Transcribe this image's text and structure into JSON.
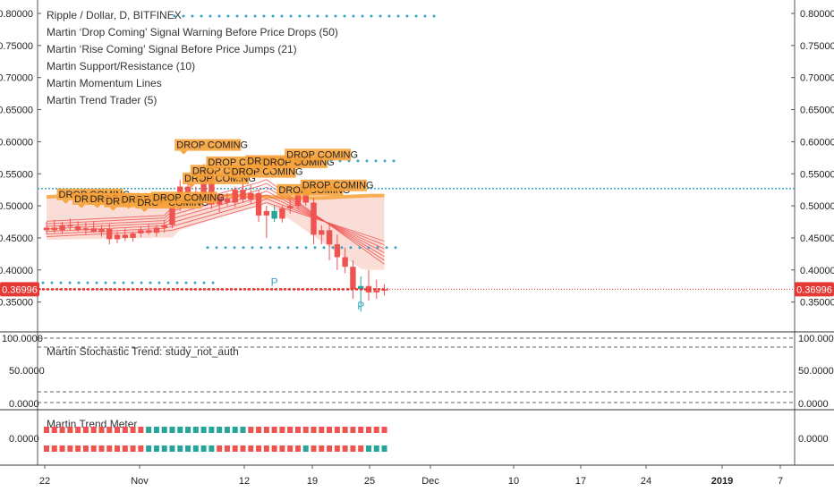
{
  "chart_data": {
    "type": "candlestick",
    "title": "Ripple / Dollar, D, BITFINEX",
    "legend": [
      "Martin ‘Drop Coming’ Signal Warning Before Price Drops (50)",
      "Martin ‘Rise Coming’ Signal Before Price Jumps (21)",
      "Martin Support/Resistance (10)",
      "Martin Momentum Lines",
      "Martin Trend Trader (5)"
    ],
    "x_ticks": [
      "22",
      "Nov",
      "12",
      "19",
      "25",
      "Dec",
      "10",
      "17",
      "24",
      "2019",
      "7"
    ],
    "y_ticks": [
      "0.80000",
      "0.75000",
      "0.70000",
      "0.65000",
      "0.60000",
      "0.55000",
      "0.50000",
      "0.45000",
      "0.40000",
      "0.35000"
    ],
    "ylim": [
      0.32,
      0.815
    ],
    "last_price": "0.36996",
    "resistance_level": 0.527,
    "current_level": 0.37,
    "candles": [
      {
        "o": 0.462,
        "h": 0.475,
        "l": 0.455,
        "c": 0.466
      },
      {
        "o": 0.466,
        "h": 0.478,
        "l": 0.458,
        "c": 0.462
      },
      {
        "o": 0.462,
        "h": 0.475,
        "l": 0.456,
        "c": 0.47
      },
      {
        "o": 0.47,
        "h": 0.48,
        "l": 0.462,
        "c": 0.468
      },
      {
        "o": 0.468,
        "h": 0.476,
        "l": 0.46,
        "c": 0.462
      },
      {
        "o": 0.462,
        "h": 0.474,
        "l": 0.455,
        "c": 0.465
      },
      {
        "o": 0.465,
        "h": 0.476,
        "l": 0.458,
        "c": 0.459
      },
      {
        "o": 0.459,
        "h": 0.47,
        "l": 0.452,
        "c": 0.464
      },
      {
        "o": 0.464,
        "h": 0.472,
        "l": 0.44,
        "c": 0.448
      },
      {
        "o": 0.448,
        "h": 0.46,
        "l": 0.442,
        "c": 0.455
      },
      {
        "o": 0.455,
        "h": 0.465,
        "l": 0.445,
        "c": 0.45
      },
      {
        "o": 0.45,
        "h": 0.46,
        "l": 0.444,
        "c": 0.457
      },
      {
        "o": 0.457,
        "h": 0.468,
        "l": 0.451,
        "c": 0.462
      },
      {
        "o": 0.462,
        "h": 0.472,
        "l": 0.455,
        "c": 0.458
      },
      {
        "o": 0.458,
        "h": 0.47,
        "l": 0.452,
        "c": 0.466
      },
      {
        "o": 0.466,
        "h": 0.478,
        "l": 0.458,
        "c": 0.47
      },
      {
        "o": 0.47,
        "h": 0.505,
        "l": 0.465,
        "c": 0.498
      },
      {
        "o": 0.498,
        "h": 0.54,
        "l": 0.492,
        "c": 0.53
      },
      {
        "o": 0.53,
        "h": 0.548,
        "l": 0.515,
        "c": 0.52
      },
      {
        "o": 0.52,
        "h": 0.53,
        "l": 0.505,
        "c": 0.512
      },
      {
        "o": 0.512,
        "h": 0.565,
        "l": 0.505,
        "c": 0.555
      },
      {
        "o": 0.555,
        "h": 0.56,
        "l": 0.495,
        "c": 0.502
      },
      {
        "o": 0.502,
        "h": 0.518,
        "l": 0.49,
        "c": 0.512
      },
      {
        "o": 0.512,
        "h": 0.52,
        "l": 0.5,
        "c": 0.505
      },
      {
        "o": 0.505,
        "h": 0.53,
        "l": 0.498,
        "c": 0.525
      },
      {
        "o": 0.525,
        "h": 0.54,
        "l": 0.505,
        "c": 0.51
      },
      {
        "o": 0.51,
        "h": 0.532,
        "l": 0.503,
        "c": 0.52
      },
      {
        "o": 0.52,
        "h": 0.525,
        "l": 0.475,
        "c": 0.485
      },
      {
        "o": 0.485,
        "h": 0.5,
        "l": 0.45,
        "c": 0.492
      },
      {
        "o": 0.492,
        "h": 0.5,
        "l": 0.475,
        "c": 0.48
      },
      {
        "o": 0.48,
        "h": 0.5,
        "l": 0.474,
        "c": 0.496
      },
      {
        "o": 0.496,
        "h": 0.512,
        "l": 0.488,
        "c": 0.5
      },
      {
        "o": 0.5,
        "h": 0.53,
        "l": 0.495,
        "c": 0.523
      },
      {
        "o": 0.523,
        "h": 0.53,
        "l": 0.5,
        "c": 0.505
      },
      {
        "o": 0.505,
        "h": 0.512,
        "l": 0.44,
        "c": 0.455
      },
      {
        "o": 0.455,
        "h": 0.47,
        "l": 0.44,
        "c": 0.462
      },
      {
        "o": 0.462,
        "h": 0.47,
        "l": 0.415,
        "c": 0.44
      },
      {
        "o": 0.44,
        "h": 0.455,
        "l": 0.4,
        "c": 0.42
      },
      {
        "o": 0.42,
        "h": 0.435,
        "l": 0.395,
        "c": 0.405
      },
      {
        "o": 0.405,
        "h": 0.415,
        "l": 0.355,
        "c": 0.37
      },
      {
        "o": 0.37,
        "h": 0.39,
        "l": 0.335,
        "c": 0.375
      },
      {
        "o": 0.375,
        "h": 0.4,
        "l": 0.352,
        "c": 0.365
      },
      {
        "o": 0.365,
        "h": 0.385,
        "l": 0.355,
        "c": 0.368
      },
      {
        "o": 0.368,
        "h": 0.378,
        "l": 0.36,
        "c": 0.37
      }
    ],
    "drop_coming_labels": [
      {
        "bar": 2,
        "price": 0.513
      },
      {
        "bar": 4,
        "price": 0.506
      },
      {
        "bar": 6,
        "price": 0.506
      },
      {
        "bar": 8,
        "price": 0.502
      },
      {
        "bar": 10,
        "price": 0.505
      },
      {
        "bar": 12,
        "price": 0.5
      },
      {
        "bar": 14,
        "price": 0.508
      },
      {
        "bar": 17,
        "price": 0.59
      },
      {
        "bar": 18,
        "price": 0.538
      },
      {
        "bar": 19,
        "price": 0.55
      },
      {
        "bar": 21,
        "price": 0.563
      },
      {
        "bar": 24,
        "price": 0.548
      },
      {
        "bar": 26,
        "price": 0.565
      },
      {
        "bar": 28,
        "price": 0.563
      },
      {
        "bar": 30,
        "price": 0.52
      },
      {
        "bar": 31,
        "price": 0.575
      },
      {
        "bar": 33,
        "price": 0.527
      }
    ],
    "drop_coming_text": "DROP COMING",
    "p_labels": [
      {
        "bar": 29,
        "price": 0.395
      },
      {
        "bar": 40,
        "price": 0.358
      }
    ],
    "p_text": "P",
    "stochastic": {
      "label": "Martin Stochastic Trend: study_not_auth",
      "y_ticks": [
        "100.0000",
        "50.0000",
        "0.0000"
      ]
    },
    "trend_meter": {
      "label": "Martin Trend Meter",
      "y_tick": "0.0000",
      "row1": [
        "r",
        "r",
        "r",
        "r",
        "r",
        "r",
        "r",
        "r",
        "r",
        "r",
        "r",
        "r",
        "r",
        "g",
        "g",
        "g",
        "g",
        "g",
        "g",
        "g",
        "g",
        "g",
        "g",
        "g",
        "g",
        "g",
        "r",
        "r",
        "r",
        "r",
        "r",
        "r",
        "r",
        "r",
        "r",
        "r",
        "r",
        "r",
        "r",
        "r",
        "r",
        "r",
        "r",
        "r"
      ],
      "row2": [
        "r",
        "r",
        "r",
        "r",
        "r",
        "r",
        "r",
        "r",
        "r",
        "r",
        "r",
        "r",
        "r",
        "g",
        "g",
        "g",
        "g",
        "g",
        "g",
        "g",
        "g",
        "g",
        "r",
        "r",
        "r",
        "r",
        "r",
        "r",
        "r",
        "r",
        "r",
        "r",
        "r",
        "g",
        "r",
        "r",
        "r",
        "r",
        "r",
        "r",
        "r",
        "g",
        "g",
        "g"
      ]
    },
    "colors": {
      "up": "#26a69a",
      "down": "#ef5350",
      "resistance": "#3ba4c7",
      "badge": "#f7a23a",
      "cloud": "#f9d7cf",
      "price_line": "#e53935"
    }
  }
}
